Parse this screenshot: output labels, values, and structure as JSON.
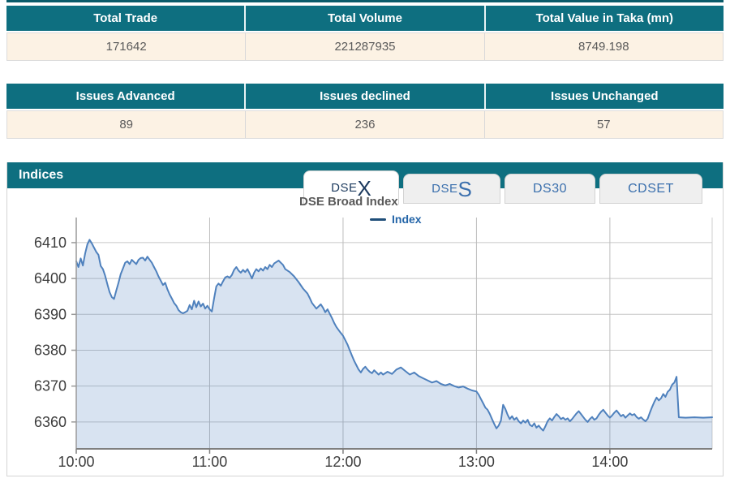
{
  "theme": {
    "teal": "#0e6f80",
    "top_strip": "#0a5b6a",
    "cream": "#fcf2e4",
    "header_text": "#ffffff",
    "value_text": "#5a5a5a",
    "tab_blue": "#3a6fad",
    "tab_active_text": "#1c3a5e",
    "line_blue": "#4f81bd"
  },
  "summary_table": {
    "headers": [
      "Total Trade",
      "Total Volume",
      "Total Value in Taka (mn)"
    ],
    "values": [
      "171642",
      "221287935",
      "8749.198"
    ]
  },
  "issues_table": {
    "headers": [
      "Issues Advanced",
      "Issues declined",
      "Issues Unchanged"
    ],
    "values": [
      "89",
      "236",
      "57"
    ]
  },
  "indices": {
    "title": "Indices",
    "chart_title": "DSE Broad Index",
    "legend_label": "Index",
    "tabs": [
      {
        "pre": "DSE",
        "cap": "X",
        "active": true
      },
      {
        "pre": "DSE",
        "cap": "S",
        "active": false
      },
      {
        "pre": "DS30",
        "cap": "",
        "active": false
      },
      {
        "pre": "CDSET",
        "cap": "",
        "active": false
      }
    ]
  },
  "chart_data": {
    "type": "area",
    "title": "DSE Broad Index",
    "xlabel": "",
    "ylabel": "",
    "x_unit": "minutes since 10:00",
    "grid": true,
    "legend_position": "top-center",
    "xlim": [
      0,
      286
    ],
    "ylim": [
      6352.5,
      6417
    ],
    "y_ticks": [
      6360,
      6370,
      6380,
      6390,
      6400,
      6410
    ],
    "x_ticks": [
      {
        "t": 0,
        "label": "10:00"
      },
      {
        "t": 60,
        "label": "11:00"
      },
      {
        "t": 120,
        "label": "12:00"
      },
      {
        "t": 180,
        "label": "13:00"
      },
      {
        "t": 240,
        "label": "14:00"
      }
    ],
    "series": [
      {
        "name": "Index",
        "color": "#4f81bd",
        "fill_opacity": 0.22,
        "points": [
          [
            0,
            6404.8
          ],
          [
            1,
            6403.2
          ],
          [
            2,
            6405.6
          ],
          [
            3,
            6403.6
          ],
          [
            4,
            6407.0
          ],
          [
            5,
            6409.5
          ],
          [
            6,
            6410.8
          ],
          [
            7,
            6409.8
          ],
          [
            8,
            6408.6
          ],
          [
            9,
            6407.4
          ],
          [
            10,
            6406.6
          ],
          [
            11,
            6403.5
          ],
          [
            12,
            6402.6
          ],
          [
            13,
            6400.8
          ],
          [
            14,
            6398.4
          ],
          [
            15,
            6396.2
          ],
          [
            16,
            6394.8
          ],
          [
            17,
            6394.3
          ],
          [
            18,
            6396.6
          ],
          [
            19,
            6398.8
          ],
          [
            20,
            6401.2
          ],
          [
            21,
            6402.8
          ],
          [
            22,
            6404.4
          ],
          [
            23,
            6404.8
          ],
          [
            24,
            6404.0
          ],
          [
            25,
            6405.2
          ],
          [
            26,
            6404.6
          ],
          [
            27,
            6404.0
          ],
          [
            28,
            6405.2
          ],
          [
            29,
            6405.7
          ],
          [
            30,
            6405.8
          ],
          [
            31,
            6405.0
          ],
          [
            32,
            6406.1
          ],
          [
            33,
            6405.2
          ],
          [
            34,
            6404.4
          ],
          [
            35,
            6403.2
          ],
          [
            36,
            6402.0
          ],
          [
            37,
            6400.6
          ],
          [
            38,
            6399.4
          ],
          [
            39,
            6398.2
          ],
          [
            40,
            6398.8
          ],
          [
            41,
            6397.0
          ],
          [
            42,
            6395.6
          ],
          [
            43,
            6394.4
          ],
          [
            44,
            6393.2
          ],
          [
            45,
            6392.4
          ],
          [
            46,
            6391.2
          ],
          [
            47,
            6390.6
          ],
          [
            48,
            6390.3
          ],
          [
            49,
            6390.6
          ],
          [
            50,
            6391.0
          ],
          [
            51,
            6392.6
          ],
          [
            52,
            6391.4
          ],
          [
            53,
            6393.8
          ],
          [
            54,
            6392.0
          ],
          [
            55,
            6393.6
          ],
          [
            56,
            6392.2
          ],
          [
            57,
            6393.0
          ],
          [
            58,
            6391.6
          ],
          [
            59,
            6392.4
          ],
          [
            60,
            6391.4
          ],
          [
            61,
            6390.8
          ],
          [
            62,
            6394.5
          ],
          [
            63,
            6397.8
          ],
          [
            64,
            6398.6
          ],
          [
            65,
            6398.0
          ],
          [
            66,
            6399.2
          ],
          [
            67,
            6400.3
          ],
          [
            68,
            6400.6
          ],
          [
            69,
            6400.2
          ],
          [
            70,
            6401.0
          ],
          [
            71,
            6402.4
          ],
          [
            72,
            6403.2
          ],
          [
            73,
            6402.2
          ],
          [
            74,
            6401.6
          ],
          [
            75,
            6402.4
          ],
          [
            76,
            6401.8
          ],
          [
            77,
            6402.6
          ],
          [
            78,
            6401.4
          ],
          [
            79,
            6400.0
          ],
          [
            80,
            6401.6
          ],
          [
            81,
            6402.6
          ],
          [
            82,
            6402.0
          ],
          [
            83,
            6402.8
          ],
          [
            84,
            6402.2
          ],
          [
            85,
            6403.2
          ],
          [
            86,
            6402.6
          ],
          [
            87,
            6403.8
          ],
          [
            88,
            6403.2
          ],
          [
            89,
            6404.2
          ],
          [
            90,
            6404.6
          ],
          [
            91,
            6405.0
          ],
          [
            92,
            6404.4
          ],
          [
            93,
            6403.8
          ],
          [
            94,
            6402.6
          ],
          [
            96,
            6401.8
          ],
          [
            98,
            6400.6
          ],
          [
            100,
            6399.0
          ],
          [
            102,
            6397.2
          ],
          [
            104,
            6395.8
          ],
          [
            105,
            6394.6
          ],
          [
            106,
            6393.2
          ],
          [
            107,
            6392.4
          ],
          [
            108,
            6391.6
          ],
          [
            110,
            6392.8
          ],
          [
            111,
            6391.8
          ],
          [
            112,
            6390.6
          ],
          [
            113,
            6391.4
          ],
          [
            114,
            6390.2
          ],
          [
            115,
            6389.0
          ],
          [
            116,
            6387.6
          ],
          [
            117,
            6386.5
          ],
          [
            118,
            6385.6
          ],
          [
            119,
            6384.8
          ],
          [
            120,
            6384.0
          ],
          [
            121,
            6382.8
          ],
          [
            122,
            6381.6
          ],
          [
            123,
            6380.0
          ],
          [
            124,
            6378.5
          ],
          [
            125,
            6377.0
          ],
          [
            126,
            6375.8
          ],
          [
            127,
            6374.6
          ],
          [
            128,
            6373.8
          ],
          [
            129,
            6374.8
          ],
          [
            130,
            6375.4
          ],
          [
            131,
            6374.6
          ],
          [
            132,
            6374.0
          ],
          [
            133,
            6373.6
          ],
          [
            134,
            6374.4
          ],
          [
            135,
            6373.8
          ],
          [
            136,
            6373.2
          ],
          [
            137,
            6373.8
          ],
          [
            138,
            6373.2
          ],
          [
            140,
            6374.0
          ],
          [
            142,
            6373.4
          ],
          [
            144,
            6374.6
          ],
          [
            146,
            6375.2
          ],
          [
            148,
            6374.2
          ],
          [
            150,
            6373.2
          ],
          [
            152,
            6373.8
          ],
          [
            154,
            6372.8
          ],
          [
            156,
            6372.2
          ],
          [
            158,
            6371.6
          ],
          [
            160,
            6371.0
          ],
          [
            162,
            6371.4
          ],
          [
            164,
            6370.6
          ],
          [
            166,
            6370.2
          ],
          [
            168,
            6370.6
          ],
          [
            170,
            6370.0
          ],
          [
            172,
            6369.6
          ],
          [
            174,
            6369.9
          ],
          [
            176,
            6369.3
          ],
          [
            178,
            6368.8
          ],
          [
            180,
            6368.5
          ],
          [
            181,
            6367.6
          ],
          [
            182,
            6366.4
          ],
          [
            183,
            6365.2
          ],
          [
            184,
            6364.0
          ],
          [
            185,
            6363.4
          ],
          [
            186,
            6362.2
          ],
          [
            187,
            6360.8
          ],
          [
            188,
            6359.4
          ],
          [
            189,
            6358.2
          ],
          [
            190,
            6359.0
          ],
          [
            191,
            6360.4
          ],
          [
            192,
            6364.8
          ],
          [
            193,
            6363.6
          ],
          [
            194,
            6362.0
          ],
          [
            195,
            6360.8
          ],
          [
            196,
            6361.6
          ],
          [
            197,
            6360.6
          ],
          [
            198,
            6361.2
          ],
          [
            199,
            6360.2
          ],
          [
            200,
            6359.6
          ],
          [
            201,
            6360.4
          ],
          [
            202,
            6359.8
          ],
          [
            203,
            6360.6
          ],
          [
            204,
            6359.2
          ],
          [
            205,
            6358.8
          ],
          [
            206,
            6359.6
          ],
          [
            207,
            6358.4
          ],
          [
            208,
            6359.0
          ],
          [
            209,
            6358.2
          ],
          [
            210,
            6357.6
          ],
          [
            211,
            6358.8
          ],
          [
            212,
            6360.2
          ],
          [
            213,
            6361.0
          ],
          [
            214,
            6360.4
          ],
          [
            215,
            6361.4
          ],
          [
            216,
            6362.2
          ],
          [
            217,
            6361.6
          ],
          [
            218,
            6360.8
          ],
          [
            219,
            6361.2
          ],
          [
            220,
            6360.6
          ],
          [
            221,
            6361.0
          ],
          [
            222,
            6360.2
          ],
          [
            223,
            6360.8
          ],
          [
            224,
            6361.6
          ],
          [
            225,
            6362.4
          ],
          [
            226,
            6363.0
          ],
          [
            227,
            6362.2
          ],
          [
            228,
            6361.4
          ],
          [
            229,
            6360.6
          ],
          [
            230,
            6360.0
          ],
          [
            231,
            6360.8
          ],
          [
            232,
            6361.4
          ],
          [
            233,
            6360.6
          ],
          [
            234,
            6361.0
          ],
          [
            235,
            6362.0
          ],
          [
            236,
            6362.8
          ],
          [
            237,
            6363.4
          ],
          [
            238,
            6362.6
          ],
          [
            239,
            6361.8
          ],
          [
            240,
            6361.2
          ],
          [
            241,
            6361.8
          ],
          [
            242,
            6362.6
          ],
          [
            243,
            6363.2
          ],
          [
            244,
            6362.4
          ],
          [
            245,
            6361.6
          ],
          [
            246,
            6362.0
          ],
          [
            247,
            6361.2
          ],
          [
            248,
            6361.8
          ],
          [
            249,
            6362.4
          ],
          [
            250,
            6361.9
          ],
          [
            251,
            6362.2
          ],
          [
            252,
            6361.4
          ],
          [
            253,
            6360.9
          ],
          [
            254,
            6361.3
          ],
          [
            255,
            6360.7
          ],
          [
            256,
            6360.2
          ],
          [
            257,
            6360.9
          ],
          [
            258,
            6362.6
          ],
          [
            259,
            6364.2
          ],
          [
            260,
            6365.6
          ],
          [
            261,
            6366.8
          ],
          [
            262,
            6366.0
          ],
          [
            263,
            6366.6
          ],
          [
            264,
            6367.8
          ],
          [
            265,
            6367.0
          ],
          [
            266,
            6368.4
          ],
          [
            267,
            6369.0
          ],
          [
            268,
            6370.4
          ],
          [
            269,
            6371.0
          ],
          [
            270,
            6372.6
          ],
          [
            271,
            6361.3
          ],
          [
            274,
            6361.2
          ],
          [
            278,
            6361.3
          ],
          [
            282,
            6361.2
          ],
          [
            286,
            6361.3
          ]
        ]
      }
    ]
  }
}
